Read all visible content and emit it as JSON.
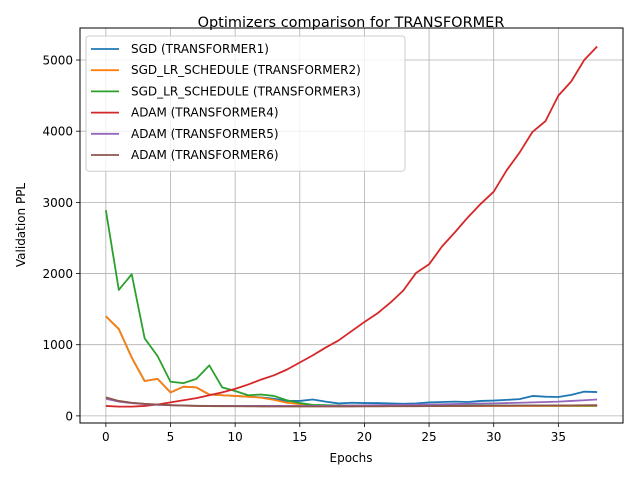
{
  "chart_data": {
    "type": "line",
    "title": "Optimizers comparison for TRANSFORMER",
    "xlabel": "Epochs",
    "ylabel": "Validation PPL",
    "xlim": [
      -2,
      40
    ],
    "ylim": [
      -100,
      5450
    ],
    "xticks": [
      0,
      5,
      10,
      15,
      20,
      25,
      30,
      35
    ],
    "yticks": [
      0,
      1000,
      2000,
      3000,
      4000,
      5000
    ],
    "grid": true,
    "legend": "top-left",
    "x": [
      0,
      1,
      2,
      3,
      4,
      5,
      6,
      7,
      8,
      9,
      10,
      11,
      12,
      13,
      14,
      15,
      16,
      17,
      18,
      19,
      20,
      21,
      22,
      23,
      24,
      25,
      26,
      27,
      28,
      29,
      30,
      31,
      32,
      33,
      34,
      35,
      36,
      37,
      38
    ],
    "series": [
      {
        "name": "SGD (TRANSFORMER1)",
        "color": "#1f77b4",
        "values": [
          1400,
          1220,
          820,
          490,
          520,
          330,
          410,
          400,
          300,
          290,
          280,
          270,
          260,
          240,
          210,
          210,
          230,
          200,
          175,
          185,
          180,
          180,
          175,
          170,
          175,
          190,
          195,
          200,
          195,
          210,
          215,
          225,
          235,
          280,
          270,
          265,
          295,
          340,
          335
        ]
      },
      {
        "name": "SGD_LR_SCHEDULE (TRANSFORMER2)",
        "color": "#ff7f0e",
        "values": [
          1400,
          1220,
          820,
          490,
          520,
          330,
          410,
          400,
          300,
          290,
          280,
          270,
          255,
          225,
          185,
          165,
          150,
          145,
          140,
          140,
          140,
          140,
          140,
          140,
          140,
          140,
          140,
          140,
          140,
          140,
          140,
          140,
          140,
          140,
          140,
          140,
          140,
          140,
          140
        ]
      },
      {
        "name": "SGD_LR_SCHEDULE (TRANSFORMER3)",
        "color": "#2ca02c",
        "values": [
          2890,
          1770,
          1990,
          1090,
          840,
          480,
          460,
          520,
          710,
          400,
          350,
          290,
          300,
          280,
          220,
          180,
          155,
          150,
          145,
          145,
          145,
          145,
          145,
          145,
          145,
          145,
          145,
          145,
          145,
          145,
          145,
          145,
          145,
          145,
          145,
          145,
          145,
          145,
          145
        ]
      },
      {
        "name": "ADAM (TRANSFORMER4)",
        "color": "#d62728",
        "values": [
          140,
          130,
          130,
          140,
          160,
          190,
          220,
          250,
          290,
          330,
          380,
          440,
          510,
          570,
          650,
          750,
          850,
          960,
          1060,
          1190,
          1320,
          1440,
          1590,
          1760,
          2010,
          2130,
          2380,
          2580,
          2790,
          2980,
          3150,
          3450,
          3700,
          3990,
          4140,
          4500,
          4700,
          5000,
          5190
        ]
      },
      {
        "name": "ADAM (TRANSFORMER5)",
        "color": "#9467bd",
        "values": [
          240,
          200,
          180,
          165,
          155,
          150,
          145,
          142,
          140,
          140,
          140,
          140,
          140,
          140,
          140,
          140,
          140,
          140,
          142,
          145,
          148,
          150,
          152,
          155,
          158,
          160,
          163,
          166,
          170,
          173,
          176,
          180,
          185,
          190,
          195,
          200,
          210,
          220,
          230
        ]
      },
      {
        "name": "ADAM (TRANSFORMER6)",
        "color": "#8c564b",
        "values": [
          260,
          210,
          185,
          170,
          160,
          150,
          145,
          140,
          138,
          136,
          135,
          134,
          133,
          132,
          132,
          132,
          132,
          132,
          133,
          133,
          134,
          134,
          135,
          135,
          136,
          137,
          138,
          139,
          140,
          141,
          142,
          143,
          144,
          145,
          146,
          147,
          148,
          149,
          150
        ]
      }
    ]
  }
}
